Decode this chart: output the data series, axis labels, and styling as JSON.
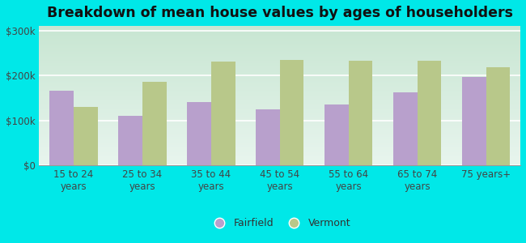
{
  "categories": [
    "15 to 24\nyears",
    "25 to 34\nyears",
    "35 to 44\nyears",
    "45 to 54\nyears",
    "55 to 64\nyears",
    "65 to 74\nyears",
    "75 years+"
  ],
  "fairfield": [
    165000,
    110000,
    140000,
    125000,
    135000,
    162000,
    197000
  ],
  "vermont": [
    130000,
    185000,
    230000,
    235000,
    232000,
    232000,
    218000
  ],
  "fairfield_color": "#b8a0cc",
  "vermont_color": "#b8c88a",
  "background_grad_bottom": "#e8f5ee",
  "background_grad_top": "#d0ede0",
  "outer_background": "#00e8e8",
  "title": "Breakdown of mean house values by ages of householders",
  "ylabel_ticks": [
    0,
    100000,
    200000,
    300000
  ],
  "ylabel_labels": [
    "$0",
    "$100k",
    "$200k",
    "$300k"
  ],
  "ylim": [
    0,
    310000
  ],
  "legend_fairfield": "Fairfield",
  "legend_vermont": "Vermont",
  "bar_width": 0.35,
  "title_fontsize": 12.5,
  "tick_fontsize": 8.5,
  "legend_fontsize": 9,
  "grid_color": "#d0e8d8",
  "bottom_line_color": "#aaaaaa"
}
